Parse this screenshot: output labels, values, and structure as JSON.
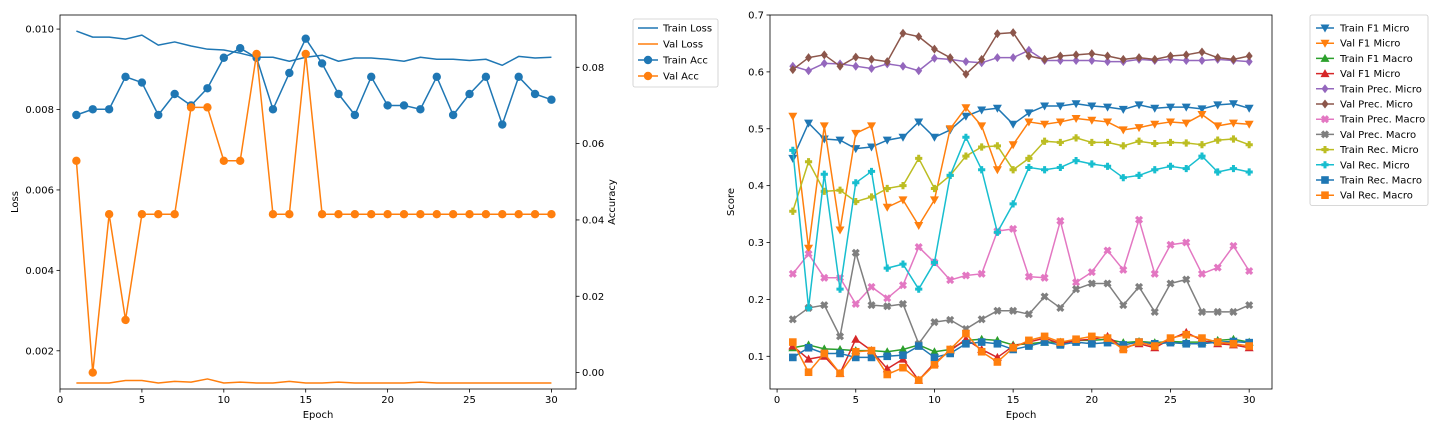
{
  "chart_data": [
    {
      "type": "line",
      "title": "",
      "xlabel": "Epoch",
      "ylabel": "Loss",
      "y2label": "Accuracy",
      "xlim": [
        0,
        31.5
      ],
      "ylim": [
        0.00105,
        0.01035
      ],
      "y2lim": [
        -0.0043,
        0.0937
      ],
      "xticks": [
        0,
        5,
        10,
        15,
        20,
        25,
        30
      ],
      "xtick_labels": [
        "0",
        "5",
        "10",
        "15",
        "20",
        "25",
        "30"
      ],
      "yticks": [
        0.002,
        0.004,
        0.006,
        0.008,
        0.01
      ],
      "ytick_labels": [
        "0.002",
        "0.004",
        "0.006",
        "0.008",
        "0.010"
      ],
      "y2ticks": [
        0.0,
        0.02,
        0.04,
        0.06,
        0.08
      ],
      "y2tick_labels": [
        "0.00",
        "0.02",
        "0.04",
        "0.06",
        "0.08"
      ],
      "grid": false,
      "legend": "outside-right",
      "x": [
        1,
        2,
        3,
        4,
        5,
        6,
        7,
        8,
        9,
        10,
        11,
        12,
        13,
        14,
        15,
        16,
        17,
        18,
        19,
        20,
        21,
        22,
        23,
        24,
        25,
        26,
        27,
        28,
        29,
        30
      ],
      "series": [
        {
          "name": "Train Loss",
          "axis": "left",
          "color": "#1f77b4",
          "marker": "none",
          "values": [
            0.00995,
            0.0098,
            0.0098,
            0.00975,
            0.00985,
            0.0096,
            0.00968,
            0.00958,
            0.0095,
            0.00948,
            0.0094,
            0.0093,
            0.0093,
            0.0092,
            0.0093,
            0.00935,
            0.0092,
            0.00928,
            0.00928,
            0.00925,
            0.0092,
            0.0093,
            0.00925,
            0.00925,
            0.00922,
            0.00925,
            0.0091,
            0.00932,
            0.00928,
            0.0093
          ]
        },
        {
          "name": "Val Loss",
          "axis": "left",
          "color": "#ff7f0e",
          "marker": "none",
          "values": [
            0.0012,
            0.0012,
            0.0012,
            0.00126,
            0.00126,
            0.0012,
            0.00124,
            0.00122,
            0.0013,
            0.0012,
            0.00122,
            0.0012,
            0.0012,
            0.00124,
            0.0012,
            0.0012,
            0.00122,
            0.0012,
            0.0012,
            0.0012,
            0.0012,
            0.00122,
            0.0012,
            0.0012,
            0.0012,
            0.0012,
            0.0012,
            0.0012,
            0.0012,
            0.0012
          ]
        },
        {
          "name": "Train Acc",
          "axis": "right",
          "color": "#1f77b4",
          "marker": "circle",
          "values": [
            0.0675,
            0.069,
            0.069,
            0.0775,
            0.076,
            0.0675,
            0.073,
            0.07,
            0.0745,
            0.0825,
            0.085,
            0.0825,
            0.069,
            0.0785,
            0.0875,
            0.081,
            0.073,
            0.0675,
            0.0775,
            0.07,
            0.07,
            0.069,
            0.0775,
            0.0675,
            0.073,
            0.0775,
            0.065,
            0.0775,
            0.073,
            0.0715
          ]
        },
        {
          "name": "Val Acc",
          "axis": "right",
          "color": "#ff7f0e",
          "marker": "circle",
          "values": [
            0.0555,
            0.0,
            0.0415,
            0.0138,
            0.0415,
            0.0415,
            0.0415,
            0.0695,
            0.0695,
            0.0555,
            0.0555,
            0.0835,
            0.0415,
            0.0415,
            0.0835,
            0.0415,
            0.0415,
            0.0415,
            0.0415,
            0.0415,
            0.0415,
            0.0415,
            0.0415,
            0.0415,
            0.0415,
            0.0415,
            0.0415,
            0.0415,
            0.0415,
            0.0415
          ]
        }
      ]
    },
    {
      "type": "line",
      "title": "",
      "xlabel": "Epoch",
      "ylabel": "Score",
      "xlim": [
        -0.45,
        31.45
      ],
      "ylim": [
        0.0425,
        0.7
      ],
      "xticks": [
        0,
        5,
        10,
        15,
        20,
        25,
        30
      ],
      "xtick_labels": [
        "0",
        "5",
        "10",
        "15",
        "20",
        "25",
        "30"
      ],
      "yticks": [
        0.1,
        0.2,
        0.3,
        0.4,
        0.5,
        0.6,
        0.7
      ],
      "ytick_labels": [
        "0.1",
        "0.2",
        "0.3",
        "0.4",
        "0.5",
        "0.6",
        "0.7"
      ],
      "grid": false,
      "legend": "outside-right",
      "x": [
        1,
        2,
        3,
        4,
        5,
        6,
        7,
        8,
        9,
        10,
        11,
        12,
        13,
        14,
        15,
        16,
        17,
        18,
        19,
        20,
        21,
        22,
        23,
        24,
        25,
        26,
        27,
        28,
        29,
        30
      ],
      "series": [
        {
          "name": "Train F1 Micro",
          "color": "#1f77b4",
          "marker": "triangle-down",
          "values": [
            0.448,
            0.51,
            0.482,
            0.48,
            0.465,
            0.468,
            0.48,
            0.485,
            0.512,
            0.485,
            0.498,
            0.522,
            0.533,
            0.536,
            0.508,
            0.528,
            0.54,
            0.54,
            0.544,
            0.54,
            0.538,
            0.534,
            0.542,
            0.536,
            0.538,
            0.538,
            0.535,
            0.542,
            0.544,
            0.536
          ]
        },
        {
          "name": "Val F1 Micro",
          "color": "#ff7f0e",
          "marker": "triangle-down",
          "values": [
            0.522,
            0.29,
            0.505,
            0.322,
            0.492,
            0.505,
            0.362,
            0.375,
            0.33,
            0.375,
            0.5,
            0.537,
            0.505,
            0.428,
            0.472,
            0.512,
            0.508,
            0.512,
            0.518,
            0.515,
            0.512,
            0.498,
            0.502,
            0.508,
            0.512,
            0.51,
            0.525,
            0.505,
            0.51,
            0.508
          ]
        },
        {
          "name": "Train F1 Macro",
          "color": "#2ca02c",
          "marker": "triangle-up",
          "values": [
            0.115,
            0.12,
            0.113,
            0.112,
            0.11,
            0.11,
            0.108,
            0.112,
            0.12,
            0.108,
            0.112,
            0.128,
            0.13,
            0.128,
            0.12,
            0.122,
            0.125,
            0.125,
            0.128,
            0.128,
            0.13,
            0.124,
            0.126,
            0.124,
            0.126,
            0.125,
            0.125,
            0.128,
            0.13,
            0.125
          ]
        },
        {
          "name": "Val F1 Micro",
          "color": "#d62728",
          "marker": "triangle-up",
          "values": [
            0.118,
            0.095,
            0.1,
            0.07,
            0.13,
            0.11,
            0.078,
            0.095,
            0.058,
            0.088,
            0.11,
            0.13,
            0.112,
            0.098,
            0.118,
            0.125,
            0.132,
            0.122,
            0.128,
            0.13,
            0.135,
            0.115,
            0.122,
            0.115,
            0.13,
            0.142,
            0.128,
            0.122,
            0.12,
            0.115
          ]
        },
        {
          "name": "Train Prec. Micro",
          "color": "#9467bd",
          "marker": "diamond",
          "values": [
            0.61,
            0.602,
            0.615,
            0.614,
            0.61,
            0.606,
            0.614,
            0.61,
            0.602,
            0.624,
            0.622,
            0.618,
            0.616,
            0.625,
            0.625,
            0.638,
            0.62,
            0.62,
            0.62,
            0.62,
            0.618,
            0.618,
            0.622,
            0.62,
            0.622,
            0.62,
            0.62,
            0.622,
            0.62,
            0.618
          ]
        },
        {
          "name": "Val Prec. Micro",
          "color": "#8c564b",
          "marker": "diamond",
          "values": [
            0.604,
            0.625,
            0.63,
            0.61,
            0.626,
            0.622,
            0.618,
            0.668,
            0.662,
            0.64,
            0.625,
            0.596,
            0.622,
            0.667,
            0.669,
            0.628,
            0.622,
            0.628,
            0.63,
            0.632,
            0.628,
            0.622,
            0.625,
            0.622,
            0.628,
            0.63,
            0.635,
            0.625,
            0.622,
            0.628
          ]
        },
        {
          "name": "Train Prec. Macro",
          "color": "#e377c2",
          "marker": "x",
          "values": [
            0.245,
            0.28,
            0.238,
            0.238,
            0.192,
            0.222,
            0.202,
            0.225,
            0.292,
            0.265,
            0.234,
            0.242,
            0.245,
            0.32,
            0.324,
            0.24,
            0.238,
            0.338,
            0.23,
            0.248,
            0.286,
            0.252,
            0.34,
            0.245,
            0.296,
            0.3,
            0.245,
            0.256,
            0.294,
            0.25
          ]
        },
        {
          "name": "Val Prec. Macro",
          "color": "#7f7f7f",
          "marker": "x",
          "values": [
            0.165,
            0.185,
            0.19,
            0.135,
            0.282,
            0.19,
            0.188,
            0.192,
            0.122,
            0.16,
            0.164,
            0.148,
            0.165,
            0.18,
            0.18,
            0.174,
            0.205,
            0.185,
            0.218,
            0.228,
            0.228,
            0.19,
            0.222,
            0.178,
            0.228,
            0.235,
            0.178,
            0.178,
            0.178,
            0.19
          ]
        },
        {
          "name": "Train Rec. Micro",
          "color": "#bcbd22",
          "marker": "plus",
          "values": [
            0.355,
            0.442,
            0.39,
            0.392,
            0.372,
            0.38,
            0.395,
            0.4,
            0.448,
            0.395,
            0.418,
            0.452,
            0.468,
            0.47,
            0.428,
            0.448,
            0.478,
            0.476,
            0.484,
            0.476,
            0.476,
            0.47,
            0.478,
            0.474,
            0.476,
            0.475,
            0.472,
            0.48,
            0.482,
            0.472
          ]
        },
        {
          "name": "Val Rec. Micro",
          "color": "#17becf",
          "marker": "plus",
          "values": [
            0.462,
            0.185,
            0.42,
            0.218,
            0.405,
            0.425,
            0.255,
            0.262,
            0.218,
            0.265,
            0.418,
            0.485,
            0.428,
            0.318,
            0.368,
            0.432,
            0.428,
            0.432,
            0.444,
            0.438,
            0.434,
            0.414,
            0.418,
            0.428,
            0.434,
            0.43,
            0.452,
            0.424,
            0.43,
            0.424
          ]
        },
        {
          "name": "Train Rec. Macro",
          "color": "#1f77b4",
          "marker": "square",
          "values": [
            0.098,
            0.115,
            0.105,
            0.105,
            0.098,
            0.098,
            0.1,
            0.102,
            0.118,
            0.098,
            0.105,
            0.122,
            0.125,
            0.122,
            0.112,
            0.118,
            0.125,
            0.12,
            0.125,
            0.122,
            0.124,
            0.12,
            0.125,
            0.122,
            0.124,
            0.122,
            0.122,
            0.125,
            0.126,
            0.124
          ]
        },
        {
          "name": "Val Rec. Macro",
          "color": "#ff7f0e",
          "marker": "square",
          "values": [
            0.125,
            0.072,
            0.105,
            0.07,
            0.108,
            0.11,
            0.068,
            0.08,
            0.058,
            0.085,
            0.112,
            0.14,
            0.108,
            0.09,
            0.115,
            0.128,
            0.135,
            0.125,
            0.13,
            0.135,
            0.132,
            0.112,
            0.125,
            0.118,
            0.132,
            0.138,
            0.132,
            0.125,
            0.122,
            0.118
          ]
        }
      ]
    }
  ]
}
